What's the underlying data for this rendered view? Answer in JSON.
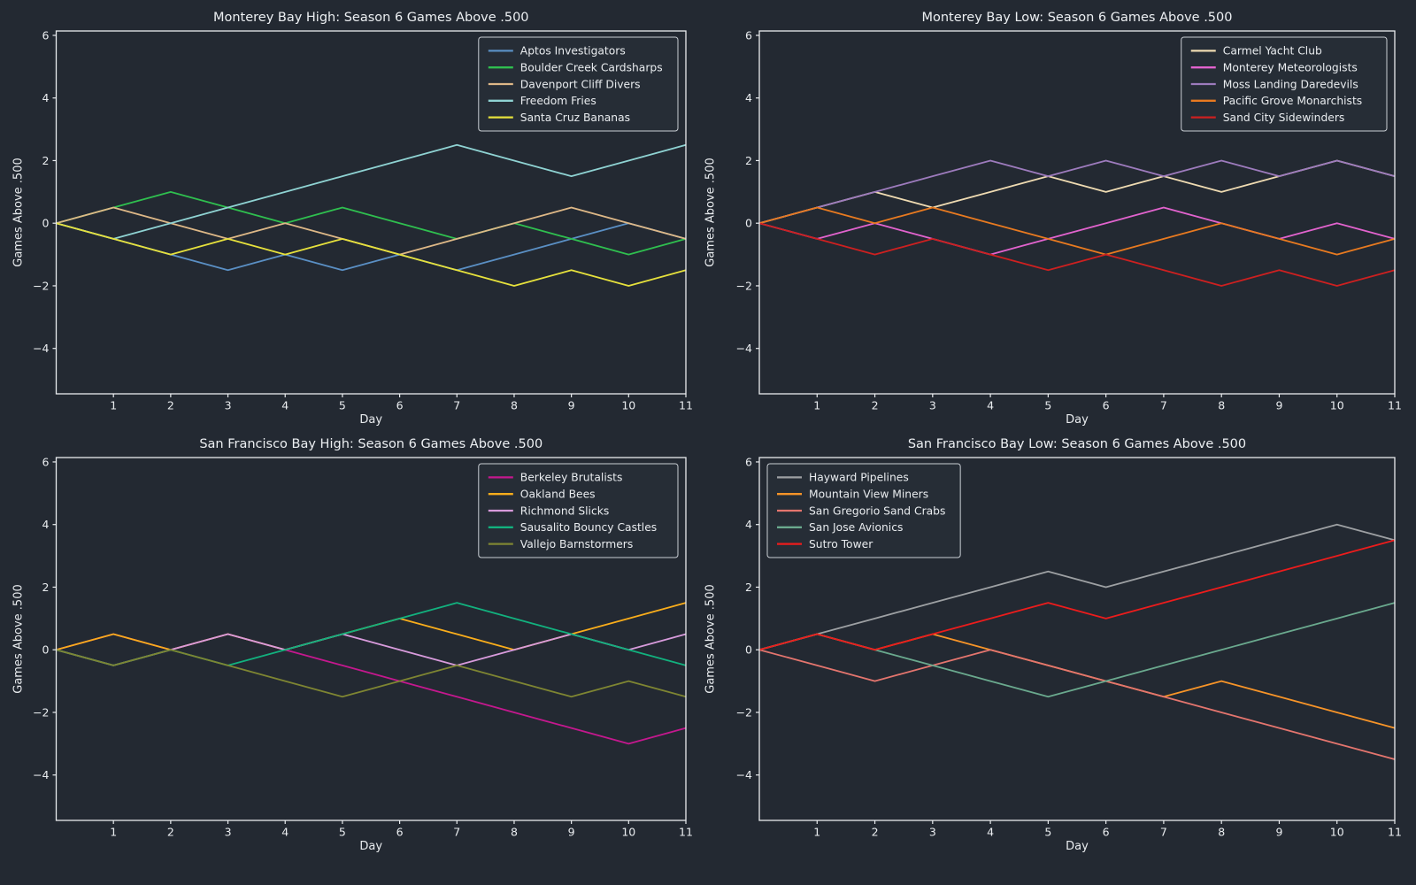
{
  "figure": {
    "background": "#232932",
    "axes_color": "#e9ecef",
    "tick_label_color": "#e9ecef",
    "legend_fill": "#262d36",
    "legend_border": "#c9ced4"
  },
  "chart_data": [
    {
      "type": "line",
      "title": "Monterey Bay High: Season 6 Games Above .500",
      "xlabel": "Day",
      "ylabel": "Games Above .500",
      "x": [
        0,
        1,
        2,
        3,
        4,
        5,
        6,
        7,
        8,
        9,
        10,
        11
      ],
      "xticks": [
        1,
        2,
        3,
        4,
        5,
        6,
        7,
        8,
        9,
        10,
        11
      ],
      "yticks": [
        6,
        4,
        2,
        0,
        -2,
        -4
      ],
      "xlim": [
        0,
        11
      ],
      "ylim": [
        -5.45,
        6.14
      ],
      "grid": false,
      "legend_position": "top-right",
      "series": [
        {
          "name": "Aptos Investigators",
          "color": "#5a8fc4",
          "values": [
            0,
            -0.5,
            -1,
            -1.5,
            -1,
            -1.5,
            -1,
            -1.5,
            -1,
            -0.5,
            0,
            -0.5
          ]
        },
        {
          "name": "Boulder Creek Cardsharps",
          "color": "#2fbf4f",
          "values": [
            0,
            0.5,
            1,
            0.5,
            0,
            0.5,
            0,
            -0.5,
            0,
            -0.5,
            -1,
            -0.5
          ]
        },
        {
          "name": "Davenport Cliff Divers",
          "color": "#deb887",
          "values": [
            0,
            0.5,
            0,
            -0.5,
            0,
            -0.5,
            -1,
            -0.5,
            0,
            0.5,
            0,
            -0.5
          ]
        },
        {
          "name": "Freedom Fries",
          "color": "#8fd3d3",
          "values": [
            0,
            -0.5,
            0,
            0.5,
            1,
            1.5,
            2,
            2.5,
            2,
            1.5,
            2,
            2.5
          ]
        },
        {
          "name": "Santa Cruz Bananas",
          "color": "#e6e13c",
          "values": [
            0,
            -0.5,
            -1,
            -0.5,
            -1,
            -0.5,
            -1,
            -1.5,
            -2,
            -1.5,
            -2,
            -1.5
          ]
        }
      ]
    },
    {
      "type": "line",
      "title": "Monterey Bay Low: Season 6 Games Above .500",
      "xlabel": "Day",
      "ylabel": "Games Above .500",
      "x": [
        0,
        1,
        2,
        3,
        4,
        5,
        6,
        7,
        8,
        9,
        10,
        11
      ],
      "xticks": [
        1,
        2,
        3,
        4,
        5,
        6,
        7,
        8,
        9,
        10,
        11
      ],
      "yticks": [
        6,
        4,
        2,
        0,
        -2,
        -4
      ],
      "xlim": [
        0,
        11
      ],
      "ylim": [
        -5.45,
        6.14
      ],
      "grid": false,
      "legend_position": "top-right",
      "series": [
        {
          "name": "Carmel Yacht Club",
          "color": "#efdbb2",
          "values": [
            0,
            0.5,
            1,
            0.5,
            1,
            1.5,
            1,
            1.5,
            1,
            1.5,
            2,
            1.5
          ]
        },
        {
          "name": "Monterey Meteorologists",
          "color": "#e263ce",
          "values": [
            0,
            -0.5,
            0,
            -0.5,
            -1,
            -0.5,
            0,
            0.5,
            0,
            -0.5,
            0,
            -0.5
          ]
        },
        {
          "name": "Moss Landing Daredevils",
          "color": "#9d7bbd",
          "values": [
            0,
            0.5,
            1,
            1.5,
            2,
            1.5,
            2,
            1.5,
            2,
            1.5,
            2,
            1.5
          ]
        },
        {
          "name": "Pacific Grove Monarchists",
          "color": "#e87a20",
          "values": [
            0,
            0.5,
            0,
            0.5,
            0,
            -0.5,
            -1,
            -0.5,
            0,
            -0.5,
            -1,
            -0.5
          ]
        },
        {
          "name": "Sand City Sidewinders",
          "color": "#cd2020",
          "values": [
            0,
            -0.5,
            -1,
            -0.5,
            -1,
            -1.5,
            -1,
            -1.5,
            -2,
            -1.5,
            -2,
            -1.5
          ]
        }
      ]
    },
    {
      "type": "line",
      "title": "San Francisco Bay High: Season 6 Games Above .500",
      "xlabel": "Day",
      "ylabel": "Games Above .500",
      "x": [
        0,
        1,
        2,
        3,
        4,
        5,
        6,
        7,
        8,
        9,
        10,
        11
      ],
      "xticks": [
        1,
        2,
        3,
        4,
        5,
        6,
        7,
        8,
        9,
        10,
        11
      ],
      "yticks": [
        6,
        4,
        2,
        0,
        -2,
        -4
      ],
      "xlim": [
        0,
        11
      ],
      "ylim": [
        -5.45,
        6.14
      ],
      "grid": false,
      "legend_position": "top-right",
      "series": [
        {
          "name": "Berkeley Brutalists",
          "color": "#c4188e",
          "values": [
            0,
            0.5,
            0,
            0.5,
            0,
            -0.5,
            -1,
            -1.5,
            -2,
            -2.5,
            -3,
            -2.5
          ]
        },
        {
          "name": "Oakland Bees",
          "color": "#f9ad1b",
          "values": [
            0,
            0.5,
            0,
            0.5,
            0,
            0.5,
            1,
            0.5,
            0,
            0.5,
            1,
            1.5
          ]
        },
        {
          "name": "Richmond Slicks",
          "color": "#d89bdc",
          "values": [
            0,
            -0.5,
            0,
            0.5,
            0,
            0.5,
            0,
            -0.5,
            0,
            0.5,
            0,
            0.5
          ]
        },
        {
          "name": "Sausalito Bouncy Castles",
          "color": "#12b17e",
          "values": [
            0,
            -0.5,
            0,
            -0.5,
            0,
            0.5,
            1,
            1.5,
            1,
            0.5,
            0,
            -0.5
          ]
        },
        {
          "name": "Vallejo Barnstormers",
          "color": "#7e8532",
          "values": [
            0,
            -0.5,
            0,
            -0.5,
            -1,
            -1.5,
            -1,
            -0.5,
            -1,
            -1.5,
            -1,
            -1.5
          ]
        }
      ]
    },
    {
      "type": "line",
      "title": "San Francisco Bay Low: Season 6 Games Above .500",
      "xlabel": "Day",
      "ylabel": "Games Above .500",
      "x": [
        0,
        1,
        2,
        3,
        4,
        5,
        6,
        7,
        8,
        9,
        10,
        11
      ],
      "xticks": [
        1,
        2,
        3,
        4,
        5,
        6,
        7,
        8,
        9,
        10,
        11
      ],
      "yticks": [
        6,
        4,
        2,
        0,
        -2,
        -4
      ],
      "xlim": [
        0,
        11
      ],
      "ylim": [
        -5.45,
        6.14
      ],
      "grid": false,
      "legend_position": "top-left",
      "series": [
        {
          "name": "Hayward Pipelines",
          "color": "#9da0a3",
          "values": [
            0,
            0.5,
            1,
            1.5,
            2,
            2.5,
            2,
            2.5,
            3,
            3.5,
            4,
            3.5
          ]
        },
        {
          "name": "Mountain View Miners",
          "color": "#f79428",
          "values": [
            0,
            0.5,
            0,
            0.5,
            0,
            -0.5,
            -1,
            -1.5,
            -1,
            -1.5,
            -2,
            -2.5
          ]
        },
        {
          "name": "San Gregorio Sand Crabs",
          "color": "#e4756e",
          "values": [
            0,
            -0.5,
            -1,
            -0.5,
            0,
            -0.5,
            -1,
            -1.5,
            -2,
            -2.5,
            -3,
            -3.5
          ]
        },
        {
          "name": "San Jose Avionics",
          "color": "#6aa98e",
          "values": [
            0,
            0.5,
            0,
            -0.5,
            -1,
            -1.5,
            -1,
            -0.5,
            0,
            0.5,
            1,
            1.5
          ]
        },
        {
          "name": "Sutro Tower",
          "color": "#ec1c1c",
          "values": [
            0,
            0.5,
            0,
            0.5,
            1,
            1.5,
            1,
            1.5,
            2,
            2.5,
            3,
            3.5
          ]
        }
      ]
    }
  ]
}
